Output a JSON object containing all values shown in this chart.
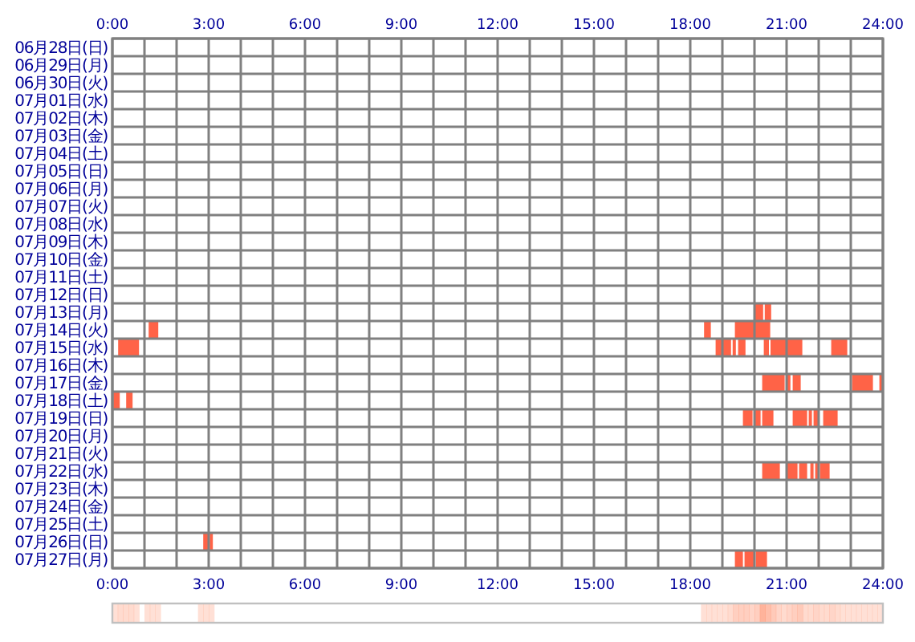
{
  "chart_data": {
    "type": "bar",
    "orientation": "horizontal",
    "grid": true,
    "categories": [
      "06月28日(日)",
      "06月29日(月)",
      "06月30日(火)",
      "07月01日(水)",
      "07月02日(木)",
      "07月03日(金)",
      "07月04日(土)",
      "07月05日(日)",
      "07月06日(月)",
      "07月07日(火)",
      "07月08日(水)",
      "07月09日(木)",
      "07月10日(金)",
      "07月11日(土)",
      "07月12日(日)",
      "07月13日(月)",
      "07月14日(火)",
      "07月15日(水)",
      "07月16日(木)",
      "07月17日(金)",
      "07月18日(土)",
      "07月19日(日)",
      "07月20日(月)",
      "07月21日(火)",
      "07月22日(水)",
      "07月23日(木)",
      "07月24日(金)",
      "07月25日(土)",
      "07月26日(日)",
      "07月27日(月)"
    ],
    "xlim": [
      0,
      24
    ],
    "xticks": [
      {
        "value": 0,
        "label": "0:00"
      },
      {
        "value": 1,
        "label": null
      },
      {
        "value": 2,
        "label": null
      },
      {
        "value": 3,
        "label": "3:00"
      },
      {
        "value": 4,
        "label": null
      },
      {
        "value": 5,
        "label": null
      },
      {
        "value": 6,
        "label": "6:00"
      },
      {
        "value": 7,
        "label": null
      },
      {
        "value": 8,
        "label": null
      },
      {
        "value": 9,
        "label": "9:00"
      },
      {
        "value": 10,
        "label": null
      },
      {
        "value": 11,
        "label": null
      },
      {
        "value": 12,
        "label": "12:00"
      },
      {
        "value": 13,
        "label": null
      },
      {
        "value": 14,
        "label": null
      },
      {
        "value": 15,
        "label": "15:00"
      },
      {
        "value": 16,
        "label": null
      },
      {
        "value": 17,
        "label": null
      },
      {
        "value": 18,
        "label": "18:00"
      },
      {
        "value": 19,
        "label": null
      },
      {
        "value": 20,
        "label": null
      },
      {
        "value": 21,
        "label": "21:00"
      },
      {
        "value": 22,
        "label": null
      },
      {
        "value": 23,
        "label": null
      },
      {
        "value": 24,
        "label": "24:00"
      }
    ],
    "x2lim": [
      0,
      24
    ],
    "x2ticks": [
      {
        "value": 0,
        "label": "0:00"
      },
      {
        "value": 3,
        "label": "3:00"
      },
      {
        "value": 6,
        "label": "6:00"
      },
      {
        "value": 9,
        "label": "9:00"
      },
      {
        "value": 12,
        "label": "12:00"
      },
      {
        "value": 15,
        "label": "15:00"
      },
      {
        "value": 18,
        "label": "18:00"
      },
      {
        "value": 21,
        "label": "21:00"
      },
      {
        "value": 24,
        "label": "24:00"
      }
    ],
    "series": [
      {
        "color": "#ff6347",
        "base": [
          null,
          null,
          null,
          null,
          null,
          null,
          null,
          null,
          null,
          null,
          null,
          null,
          null,
          null,
          null,
          20.02,
          1.13,
          0.18,
          null,
          20.24,
          0.03,
          19.64,
          null,
          null,
          20.24,
          null,
          null,
          null,
          2.83,
          19.39
        ],
        "values": [
          null,
          null,
          null,
          null,
          null,
          null,
          null,
          null,
          null,
          null,
          null,
          null,
          null,
          null,
          null,
          0.25,
          0.3,
          0.65,
          null,
          0.7,
          0.2,
          0.3,
          null,
          null,
          0.55,
          null,
          null,
          null,
          0.15,
          0.25
        ]
      },
      {
        "color": "#ff6347",
        "base": [
          null,
          null,
          null,
          null,
          null,
          null,
          null,
          null,
          null,
          null,
          null,
          null,
          null,
          null,
          null,
          20.32,
          18.43,
          18.79,
          null,
          21.02,
          0.43,
          20.0,
          null,
          null,
          21.0,
          null,
          null,
          null,
          3.03,
          19.69
        ],
        "values": [
          null,
          null,
          null,
          null,
          null,
          null,
          null,
          null,
          null,
          null,
          null,
          null,
          null,
          null,
          null,
          0.2,
          0.21,
          0.48,
          null,
          0.1,
          0.2,
          0.19,
          null,
          null,
          0.34,
          null,
          null,
          null,
          0.1,
          0.3
        ]
      },
      {
        "color": "#ff6347",
        "base": [
          null,
          null,
          null,
          null,
          null,
          null,
          null,
          null,
          null,
          null,
          null,
          null,
          null,
          null,
          null,
          null,
          19.39,
          19.32,
          null,
          21.19,
          null,
          20.24,
          null,
          null,
          21.39,
          null,
          null,
          null,
          null,
          20.04
        ],
        "values": [
          null,
          null,
          null,
          null,
          null,
          null,
          null,
          null,
          null,
          null,
          null,
          null,
          null,
          null,
          null,
          null,
          1.1,
          0.1,
          null,
          0.25,
          null,
          0.35,
          null,
          null,
          0.25,
          null,
          null,
          null,
          null,
          0.35
        ]
      },
      {
        "color": "#ff6347",
        "base": [
          null,
          null,
          null,
          null,
          null,
          null,
          null,
          null,
          null,
          null,
          null,
          null,
          null,
          null,
          null,
          null,
          null,
          19.49,
          null,
          23.04,
          null,
          21.19,
          null,
          null,
          21.74,
          null,
          null,
          null,
          null,
          null
        ],
        "values": [
          null,
          null,
          null,
          null,
          null,
          null,
          null,
          null,
          null,
          null,
          null,
          null,
          null,
          null,
          null,
          null,
          null,
          0.23,
          null,
          0.65,
          null,
          0.45,
          null,
          null,
          0.1,
          null,
          null,
          null,
          null,
          null
        ]
      },
      {
        "color": "#ff6347",
        "base": [
          null,
          null,
          null,
          null,
          null,
          null,
          null,
          null,
          null,
          null,
          null,
          null,
          null,
          null,
          null,
          null,
          null,
          20.29,
          null,
          23.89,
          null,
          21.69,
          null,
          null,
          21.89,
          null,
          null,
          null,
          null,
          null
        ],
        "values": [
          null,
          null,
          null,
          null,
          null,
          null,
          null,
          null,
          null,
          null,
          null,
          null,
          null,
          null,
          null,
          null,
          null,
          0.16,
          null,
          0.1,
          null,
          0.1,
          null,
          null,
          0.1,
          null,
          null,
          null,
          null,
          null
        ]
      },
      {
        "color": "#ff6347",
        "base": [
          null,
          null,
          null,
          null,
          null,
          null,
          null,
          null,
          null,
          null,
          null,
          null,
          null,
          null,
          null,
          null,
          null,
          20.5,
          null,
          null,
          null,
          21.84,
          null,
          null,
          22.04,
          null,
          null,
          null,
          null,
          null
        ],
        "values": [
          null,
          null,
          null,
          null,
          null,
          null,
          null,
          null,
          null,
          null,
          null,
          null,
          null,
          null,
          null,
          null,
          null,
          0.99,
          null,
          null,
          null,
          0.15,
          null,
          null,
          0.3,
          null,
          null,
          null,
          null,
          null
        ]
      },
      {
        "color": "#ff6347",
        "base": [
          null,
          null,
          null,
          null,
          null,
          null,
          null,
          null,
          null,
          null,
          null,
          null,
          null,
          null,
          null,
          null,
          null,
          22.39,
          null,
          null,
          null,
          22.14,
          null,
          null,
          null,
          null,
          null,
          null,
          null,
          null
        ],
        "values": [
          null,
          null,
          null,
          null,
          null,
          null,
          null,
          null,
          null,
          null,
          null,
          null,
          null,
          null,
          null,
          null,
          null,
          0.5,
          null,
          null,
          null,
          0.45,
          null,
          null,
          null,
          null,
          null,
          null,
          null,
          null
        ]
      }
    ]
  }
}
